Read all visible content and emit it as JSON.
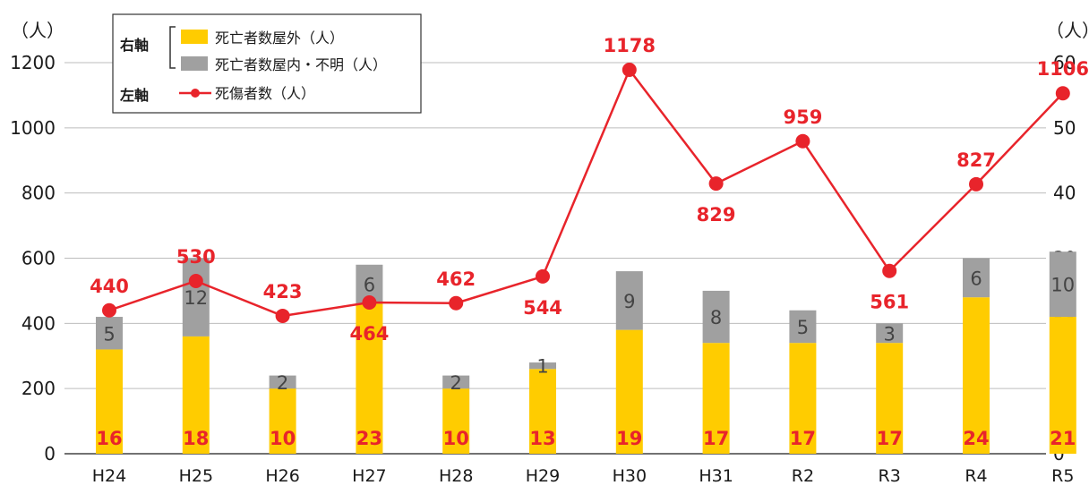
{
  "chart_data": {
    "type": "bar+line",
    "categories": [
      "H24",
      "H25",
      "H26",
      "H27",
      "H28",
      "H29",
      "H30",
      "H31",
      "R2",
      "R3",
      "R4",
      "R5"
    ],
    "left_axis": {
      "unit": "（人）",
      "ylim": [
        0,
        1200
      ],
      "ticks": [
        0,
        200,
        400,
        600,
        800,
        1000,
        1200
      ]
    },
    "right_axis": {
      "unit": "（人）",
      "ylim": [
        0,
        60
      ],
      "ticks": [
        0,
        10,
        20,
        30,
        40,
        50,
        60
      ]
    },
    "legend": {
      "right_axis_label": "右軸",
      "left_axis_label": "左軸",
      "outdoor_label": "死亡者数屋外（人）",
      "indoor_label": "死亡者数屋内・不明（人）",
      "casualty_label": "死傷者数（人）"
    },
    "series": [
      {
        "name": "死亡者数屋外（人）",
        "axis": "right",
        "kind": "stacked-bar",
        "color": "#ffcc00",
        "values": [
          16,
          18,
          10,
          23,
          10,
          13,
          19,
          17,
          17,
          17,
          24,
          21
        ]
      },
      {
        "name": "死亡者数屋内・不明（人）",
        "axis": "right",
        "kind": "stacked-bar",
        "color": "#a0a0a0",
        "values": [
          5,
          12,
          2,
          6,
          2,
          1,
          9,
          8,
          5,
          3,
          6,
          10
        ]
      },
      {
        "name": "死傷者数（人）",
        "axis": "left",
        "kind": "line",
        "color": "#e8242b",
        "values": [
          440,
          530,
          423,
          464,
          462,
          544,
          1178,
          829,
          959,
          561,
          827,
          1106
        ]
      }
    ],
    "colors": {
      "outdoor": "#ffcc00",
      "indoor": "#a0a0a0",
      "line": "#e8242b",
      "label": "#e8242b"
    }
  }
}
